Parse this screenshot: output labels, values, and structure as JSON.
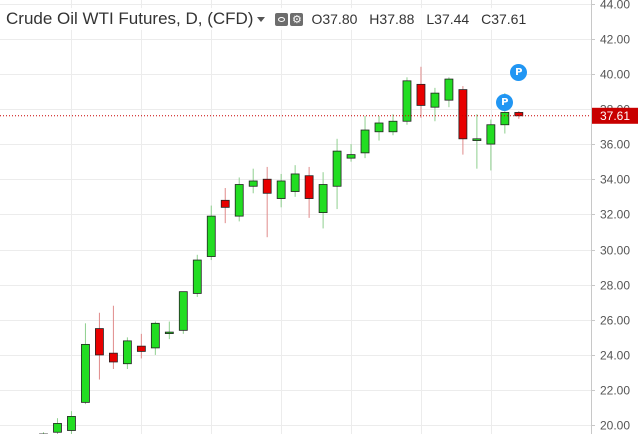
{
  "header": {
    "title": "Crude Oil WTI Futures, D, (CFD)",
    "open_label": "O",
    "open": "37.80",
    "high_label": "H",
    "high": "37.88",
    "low_label": "L",
    "low": "37.44",
    "close_label": "C",
    "close": "37.61",
    "visibility_icon": "eye-icon",
    "settings_icon": "gear-icon"
  },
  "last_price_label": "37.61",
  "markers": [
    {
      "label": "P",
      "bar_index": 34,
      "price": 40.05
    },
    {
      "label": "P",
      "bar_index": 33,
      "price": 38.35
    }
  ],
  "colors": {
    "up": "#22dd22",
    "down": "#e80000",
    "grid": "#ececec",
    "axis": "#c8c8c8",
    "price_line": "#c80000",
    "marker": "#2196f3"
  },
  "chart_data": {
    "type": "candlestick",
    "title": "Crude Oil WTI Futures, D, (CFD)",
    "xlabel": "",
    "ylabel": "",
    "ylim": [
      19.5,
      44.2
    ],
    "y_ticks": [
      "20.00",
      "22.00",
      "24.00",
      "26.00",
      "28.00",
      "30.00",
      "32.00",
      "34.00",
      "36.00",
      "38.00",
      "40.00",
      "42.00",
      "44.00"
    ],
    "grid": true,
    "last_price": 37.61,
    "candles": [
      {
        "o": 19.3,
        "h": 19.6,
        "l": 19.2,
        "c": 19.5
      },
      {
        "o": 19.6,
        "h": 20.4,
        "l": 19.4,
        "c": 20.1
      },
      {
        "o": 19.7,
        "h": 20.8,
        "l": 19.5,
        "c": 20.5
      },
      {
        "o": 21.3,
        "h": 25.8,
        "l": 21.2,
        "c": 24.6
      },
      {
        "o": 25.5,
        "h": 26.4,
        "l": 22.6,
        "c": 24.0
      },
      {
        "o": 24.1,
        "h": 26.8,
        "l": 23.2,
        "c": 23.6
      },
      {
        "o": 23.5,
        "h": 25.0,
        "l": 23.2,
        "c": 24.8
      },
      {
        "o": 24.5,
        "h": 25.2,
        "l": 23.8,
        "c": 24.2
      },
      {
        "o": 24.4,
        "h": 25.9,
        "l": 24.0,
        "c": 25.8
      },
      {
        "o": 25.3,
        "h": 25.9,
        "l": 24.9,
        "c": 25.3
      },
      {
        "o": 25.4,
        "h": 27.6,
        "l": 25.2,
        "c": 27.6
      },
      {
        "o": 27.5,
        "h": 29.7,
        "l": 27.3,
        "c": 29.4
      },
      {
        "o": 29.6,
        "h": 32.5,
        "l": 29.4,
        "c": 31.9
      },
      {
        "o": 32.8,
        "h": 33.5,
        "l": 31.5,
        "c": 32.4
      },
      {
        "o": 31.9,
        "h": 34.1,
        "l": 31.6,
        "c": 33.7
      },
      {
        "o": 33.6,
        "h": 34.6,
        "l": 33.2,
        "c": 33.9
      },
      {
        "o": 34.0,
        "h": 34.7,
        "l": 30.7,
        "c": 33.2
      },
      {
        "o": 32.9,
        "h": 34.3,
        "l": 32.4,
        "c": 33.9
      },
      {
        "o": 33.3,
        "h": 34.8,
        "l": 33.0,
        "c": 34.3
      },
      {
        "o": 34.2,
        "h": 34.7,
        "l": 31.8,
        "c": 32.9
      },
      {
        "o": 32.1,
        "h": 34.4,
        "l": 31.2,
        "c": 33.7
      },
      {
        "o": 33.6,
        "h": 36.3,
        "l": 32.3,
        "c": 35.6
      },
      {
        "o": 35.2,
        "h": 36.0,
        "l": 35.0,
        "c": 35.4
      },
      {
        "o": 35.5,
        "h": 37.6,
        "l": 35.2,
        "c": 36.8
      },
      {
        "o": 36.7,
        "h": 37.6,
        "l": 36.2,
        "c": 37.2
      },
      {
        "o": 36.7,
        "h": 37.7,
        "l": 36.5,
        "c": 37.3
      },
      {
        "o": 37.3,
        "h": 39.8,
        "l": 37.1,
        "c": 39.6
      },
      {
        "o": 39.4,
        "h": 40.4,
        "l": 37.5,
        "c": 38.2
      },
      {
        "o": 38.1,
        "h": 39.2,
        "l": 37.3,
        "c": 38.9
      },
      {
        "o": 38.5,
        "h": 39.8,
        "l": 38.1,
        "c": 39.7
      },
      {
        "o": 39.1,
        "h": 39.3,
        "l": 35.4,
        "c": 36.3
      },
      {
        "o": 36.2,
        "h": 37.7,
        "l": 34.6,
        "c": 36.3
      },
      {
        "o": 36.0,
        "h": 37.4,
        "l": 34.5,
        "c": 37.1
      },
      {
        "o": 37.1,
        "h": 38.9,
        "l": 36.6,
        "c": 37.8
      },
      {
        "o": 37.8,
        "h": 37.88,
        "l": 37.44,
        "c": 37.61
      }
    ]
  }
}
